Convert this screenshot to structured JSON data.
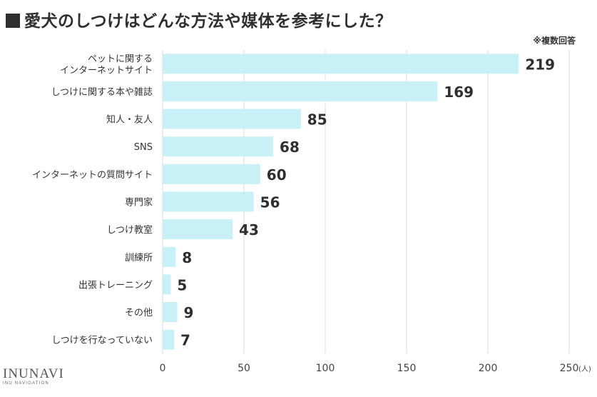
{
  "title": "愛犬のしつけはどんな方法や媒体を参考にした？",
  "note": "※複数回答",
  "brand": {
    "name": "INUNAVI",
    "tagline": "INU NAVIGATION"
  },
  "colors": {
    "bar": "#c9eff7",
    "grid": "#d9d9d9",
    "text": "#333333"
  },
  "chart_data": {
    "type": "bar",
    "orientation": "horizontal",
    "categories": [
      "ペットに関する\nインターネットサイト",
      "しつけに関する本や雑誌",
      "知人・友人",
      "SNS",
      "インターネットの質問サイト",
      "専門家",
      "しつけ教室",
      "訓練所",
      "出張トレーニング",
      "その他",
      "しつけを行なっていない"
    ],
    "values": [
      219,
      169,
      85,
      68,
      60,
      56,
      43,
      8,
      5,
      9,
      7
    ],
    "xlim": [
      0,
      250
    ],
    "xticks": [
      "0",
      "50",
      "100",
      "150",
      "200",
      "250"
    ],
    "xunit": "(人)",
    "grid": true
  }
}
